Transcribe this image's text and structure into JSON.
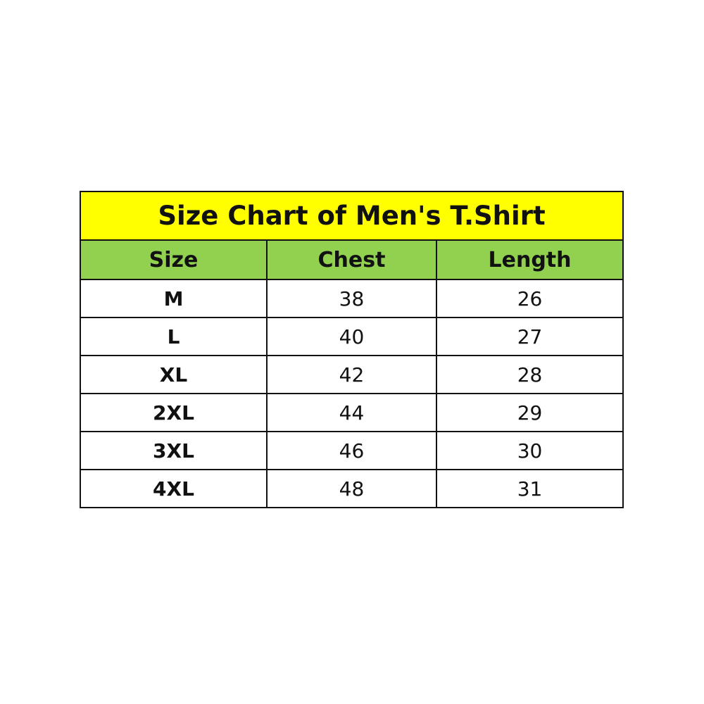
{
  "title": "Size Chart of Men's T.Shirt",
  "colors": {
    "title_bg": "#ffff00",
    "header_bg": "#92d050",
    "border": "#111111"
  },
  "columns": [
    "Size",
    "Chest",
    "Length"
  ],
  "rows": [
    [
      "M",
      "38",
      "26"
    ],
    [
      "L",
      "40",
      "27"
    ],
    [
      "XL",
      "42",
      "28"
    ],
    [
      "2XL",
      "44",
      "29"
    ],
    [
      "3XL",
      "46",
      "30"
    ],
    [
      "4XL",
      "48",
      "31"
    ]
  ]
}
